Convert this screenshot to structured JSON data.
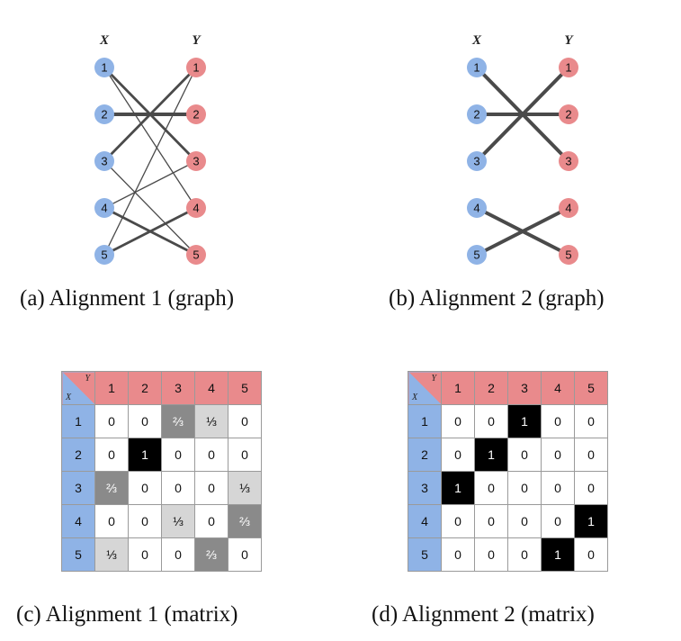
{
  "colors": {
    "x_node": "#8fb3e6",
    "y_node": "#e98a8c",
    "edge": "#4a4a4a"
  },
  "axis": {
    "x": "X",
    "y": "Y"
  },
  "node_labels": [
    "1",
    "2",
    "3",
    "4",
    "5"
  ],
  "graph_a": {
    "caption": "(a) Alignment 1 (graph)",
    "edges": [
      {
        "from": 1,
        "to": 3,
        "weight": 0.6667
      },
      {
        "from": 1,
        "to": 4,
        "weight": 0.3333
      },
      {
        "from": 2,
        "to": 2,
        "weight": 1
      },
      {
        "from": 3,
        "to": 1,
        "weight": 0.6667
      },
      {
        "from": 3,
        "to": 5,
        "weight": 0.3333
      },
      {
        "from": 4,
        "to": 3,
        "weight": 0.3333
      },
      {
        "from": 4,
        "to": 5,
        "weight": 0.6667
      },
      {
        "from": 5,
        "to": 1,
        "weight": 0.3333
      },
      {
        "from": 5,
        "to": 4,
        "weight": 0.6667
      }
    ]
  },
  "graph_b": {
    "caption": "(b) Alignment 2 (graph)",
    "edges": [
      {
        "from": 1,
        "to": 3,
        "weight": 1
      },
      {
        "from": 2,
        "to": 2,
        "weight": 1
      },
      {
        "from": 3,
        "to": 1,
        "weight": 1
      },
      {
        "from": 4,
        "to": 5,
        "weight": 1
      },
      {
        "from": 5,
        "to": 4,
        "weight": 1
      }
    ]
  },
  "matrix_c": {
    "caption": "(c) Alignment 1 (matrix)",
    "cells": [
      [
        "0",
        "0",
        "⅔",
        "⅓",
        "0"
      ],
      [
        "0",
        "1",
        "0",
        "0",
        "0"
      ],
      [
        "⅔",
        "0",
        "0",
        "0",
        "⅓"
      ],
      [
        "0",
        "0",
        "⅓",
        "0",
        "⅔"
      ],
      [
        "⅓",
        "0",
        "0",
        "⅔",
        "0"
      ]
    ]
  },
  "matrix_d": {
    "caption": "(d) Alignment 2 (matrix)",
    "cells": [
      [
        "0",
        "0",
        "1",
        "0",
        "0"
      ],
      [
        "0",
        "1",
        "0",
        "0",
        "0"
      ],
      [
        "1",
        "0",
        "0",
        "0",
        "0"
      ],
      [
        "0",
        "0",
        "0",
        "0",
        "1"
      ],
      [
        "0",
        "0",
        "0",
        "1",
        "0"
      ]
    ]
  }
}
